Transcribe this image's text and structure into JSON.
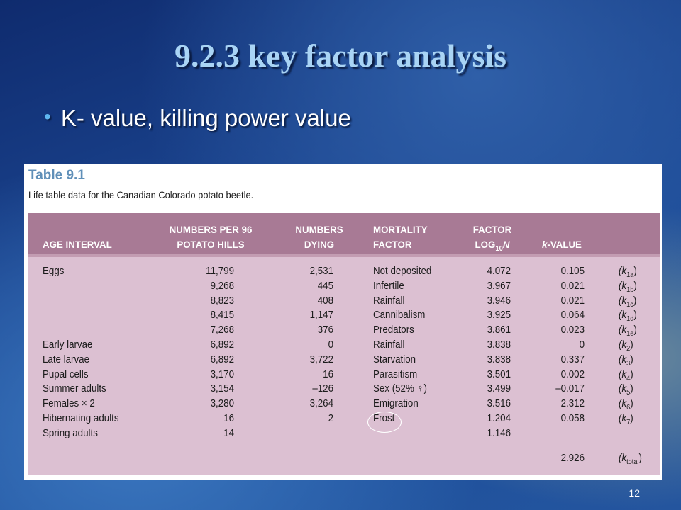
{
  "slide": {
    "title": "9.2.3 key factor analysis",
    "bullet": "K- value, killing power value",
    "page_number": "12"
  },
  "table": {
    "number": "Table 9.1",
    "caption": "Life table data for the Canadian Colorado potato beetle.",
    "headers": {
      "age_interval": "AGE INTERVAL",
      "numbers_per_96": [
        "NUMBERS PER 96",
        "POTATO HILLS"
      ],
      "numbers_dying": [
        "NUMBERS",
        "DYING"
      ],
      "mortality_factor": [
        "MORTALITY",
        "FACTOR"
      ],
      "factor_log_top": "FACTOR",
      "factor_log_bottom": "LOG",
      "factor_log_sub": "10",
      "factor_log_n": "N",
      "k_value_k": "k",
      "k_value_rest": "-VALUE"
    },
    "colors": {
      "header_band": "#a87a95",
      "body": "#dcc0d2",
      "table_number": "#5f8fb8"
    },
    "rows": [
      {
        "age": "Eggs",
        "n": "11,799",
        "d": "2,531",
        "factor": "Not deposited",
        "log": "4.072",
        "k": "0.105",
        "kl": "(k",
        "ks": "1a",
        "kr": ")"
      },
      {
        "age": "",
        "n": "9,268",
        "d": "445",
        "factor": "Infertile",
        "log": "3.967",
        "k": "0.021",
        "kl": "(k",
        "ks": "1b",
        "kr": ")"
      },
      {
        "age": "",
        "n": "8,823",
        "d": "408",
        "factor": "Rainfall",
        "log": "3.946",
        "k": "0.021",
        "kl": "(k",
        "ks": "1c",
        "kr": ")"
      },
      {
        "age": "",
        "n": "8,415",
        "d": "1,147",
        "factor": "Cannibalism",
        "log": "3.925",
        "k": "0.064",
        "kl": "(k",
        "ks": "1d",
        "kr": ")"
      },
      {
        "age": "",
        "n": "7,268",
        "d": "376",
        "factor": "Predators",
        "log": "3.861",
        "k": "0.023",
        "kl": "(k",
        "ks": "1e",
        "kr": ")"
      },
      {
        "age": "Early larvae",
        "n": "6,892",
        "d": "0",
        "factor": "Rainfall",
        "log": "3.838",
        "k": "0",
        "kl": "(k",
        "ks": "2",
        "kr": ")"
      },
      {
        "age": "Late larvae",
        "n": "6,892",
        "d": "3,722",
        "factor": "Starvation",
        "log": "3.838",
        "k": "0.337",
        "kl": "(k",
        "ks": "3",
        "kr": ")"
      },
      {
        "age": "Pupal cells",
        "n": "3,170",
        "d": "16",
        "factor": "Parasitism",
        "log": "3.501",
        "k": "0.002",
        "kl": "(k",
        "ks": "4",
        "kr": ")"
      },
      {
        "age": "Summer adults",
        "n": "3,154",
        "d": "–126",
        "factor": "Sex (52% ♀)",
        "log": "3.499",
        "k": "–0.017",
        "kl": "(k",
        "ks": "5",
        "kr": ")"
      },
      {
        "age": "Females × 2",
        "n": "3,280",
        "d": "3,264",
        "factor": "Emigration",
        "log": "3.516",
        "k": "2.312",
        "kl": "(k",
        "ks": "6",
        "kr": ")"
      },
      {
        "age": "Hibernating adults",
        "n": "16",
        "d": "2",
        "factor": "Frost",
        "log": "1.204",
        "k": "0.058",
        "kl": "(k",
        "ks": "7",
        "kr": ")"
      },
      {
        "age": "Spring adults",
        "n": "14",
        "d": "",
        "factor": "",
        "log": "1.146",
        "k": "",
        "kl": "",
        "ks": "",
        "kr": ""
      }
    ],
    "total": {
      "k": "2.926",
      "kl": "(k",
      "ks": "total",
      "kr": ")"
    }
  }
}
